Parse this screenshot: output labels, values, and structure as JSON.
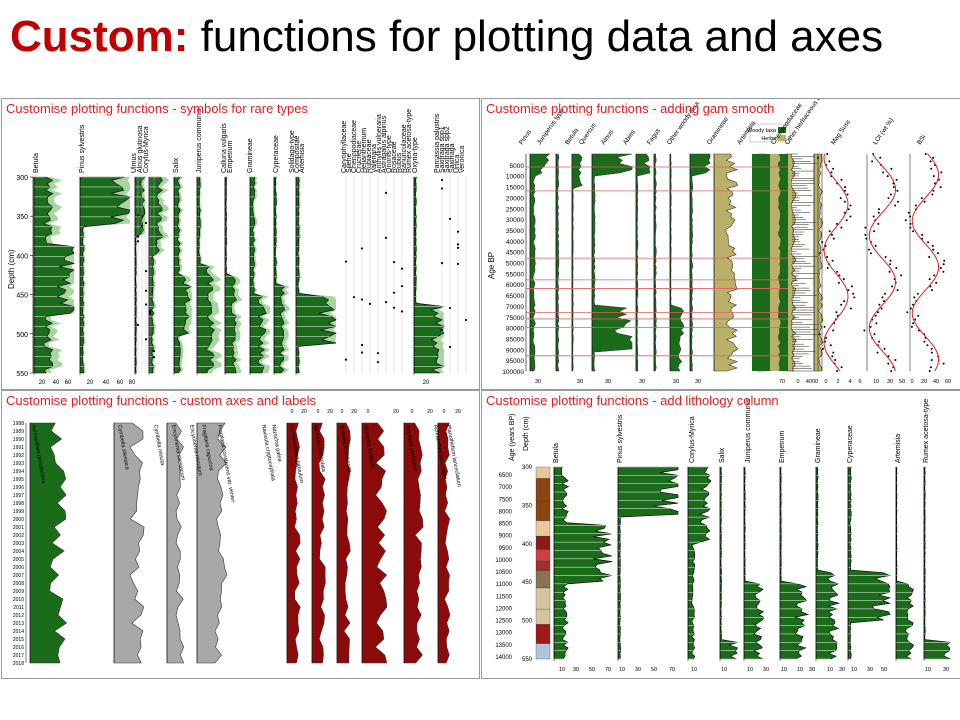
{
  "slide": {
    "title_keyword": "Custom:",
    "title_rest": " functions for plotting data and axes"
  },
  "colors": {
    "accent": "#c00000",
    "panel_title": "#e02020",
    "curve": "#1a6b1a",
    "exag": "#a8d5a0",
    "olive": "#b9b06a",
    "dark_red": "#8b0a0a",
    "grey": "#a8a8a8"
  },
  "chart_data": [
    {
      "type": "area",
      "title": "Customise plotting functions - symbols for rare types",
      "ylabel": "Depth (cm)",
      "y_ticks": [
        "300",
        "350",
        "400",
        "450",
        "500",
        "550"
      ],
      "ylim": [
        300,
        550
      ],
      "taxa": [
        "Betula",
        "Pinus sylvestris",
        "Ulmus",
        "Alnus glutinosa",
        "Corylus-Myrica",
        "Salix",
        "Juniperus communis",
        "Calluna vulgaris",
        "Empetrum",
        "Gramineae",
        "Cyperaceae",
        "Solidago-type",
        "Compositae",
        "Artemisia",
        "Caryophyllaceae",
        "Silene",
        "Chenopodiaceae",
        "Cruciferae",
        "Helianthemum",
        "Rubiaceae",
        "Valeriana",
        "Anthyllis vulneraria",
        "Astragalus alpinus",
        "Ononis-type",
        "Rosaceae",
        "Rubus",
        "Ranunculaceae",
        "Rumex acetosa-type",
        "Oxyria-type",
        "Parnassia palustris",
        "Saxifraga spp1",
        "Saxifraga spp2",
        "Saxifraga",
        "Urtica",
        "Veronica"
      ],
      "x_ticks": [
        "20",
        "40",
        "60",
        "20",
        "40",
        "60",
        "80",
        "20"
      ]
    },
    {
      "type": "area",
      "title": "Customise plotting functions - adding gam smooth",
      "ylabel": "Age BP",
      "y_ticks": [
        "5000",
        "10000",
        "15000",
        "20000",
        "25000",
        "30000",
        "35000",
        "40000",
        "45000",
        "50000",
        "55000",
        "60000",
        "65000",
        "70000",
        "75000",
        "80000",
        "85000",
        "90000",
        "95000",
        "100000"
      ],
      "ylim": [
        0,
        100000
      ],
      "taxa": [
        "Pinus",
        "Juniperus type",
        "Betula",
        "Quercus",
        "Alnus",
        "Abies",
        "Fagus",
        "Other woody taxa",
        "Gramineae",
        "Artemisia",
        "Chenopodiaceae",
        "Other herbaceous taxa",
        "Mag Susc",
        "LOI (wt %)",
        "BSi"
      ],
      "legend": [
        "Woody taxa",
        "Herbs"
      ],
      "x_ticks": [
        "30",
        "30",
        "30",
        "30",
        "30",
        "30",
        "70",
        "0",
        "4000",
        "0",
        "2",
        "4",
        "6",
        "10",
        "30",
        "50",
        "0",
        "20",
        "40",
        "60"
      ]
    },
    {
      "type": "area",
      "title": "Customise plotting functions - custom axes and labels",
      "y_ticks": [
        "1988",
        "1989",
        "1990",
        "1991",
        "1992",
        "1993",
        "1994",
        "1995",
        "1996",
        "1997",
        "1998",
        "1999",
        "2000",
        "2001",
        "2002",
        "2003",
        "2004",
        "2005",
        "2006",
        "2007",
        "2008",
        "2009",
        "2010",
        "2011",
        "2012",
        "2013",
        "2014",
        "2015",
        "2016",
        "2017",
        "2018"
      ],
      "ylim": [
        1988,
        2018
      ],
      "taxa": [
        "Achnanthes minutissima",
        "Cymbella silesiaca",
        "Cymbella minuta",
        "Encyonema silesiacum",
        "Encyonema minutum",
        "Fragilaria capucina",
        "Fragilaria construens var. venter",
        "Navicula cryptocephala",
        "Nitzschia palea",
        "Gomphonema parvulum",
        "Navicula lanceolata",
        "Surirella brebissonii",
        "Nitzschia fonticola",
        "Amphora pediculus",
        "Achnanthes lanceolata",
        "Planothidium lanceolatum"
      ],
      "x_ticks": [
        "0",
        "20",
        "0",
        "20",
        "0",
        "20",
        "0",
        "20",
        "0",
        "20",
        "0",
        "20"
      ]
    },
    {
      "type": "area",
      "title": "Customise plotting functions - add lithology column",
      "ylabel": "Depth (cm)",
      "ylabel2": "Age (years BP)",
      "depth_ticks": [
        "300",
        "350",
        "400",
        "450",
        "500",
        "550"
      ],
      "age_ticks": [
        "6500",
        "7000",
        "7500",
        "8000",
        "8500",
        "9000",
        "9500",
        "10000",
        "10500",
        "11000",
        "11500",
        "12000",
        "12500",
        "13000",
        "13500",
        "14000"
      ],
      "taxa": [
        "Betula",
        "Pinus sylvestris",
        "Corylus-Myrica",
        "Salix",
        "Juniperus communis",
        "Empetrum",
        "Gramineae",
        "Cyperaceae",
        "Artemisia",
        "Rumex acetosa-type"
      ],
      "x_ticks": [
        "10",
        "30",
        "50",
        "70",
        "10",
        "30",
        "50",
        "70",
        "10",
        "10",
        "10",
        "30",
        "10",
        "10",
        "30",
        "10",
        "30",
        "10",
        "30",
        "50",
        "10",
        "30"
      ]
    }
  ]
}
